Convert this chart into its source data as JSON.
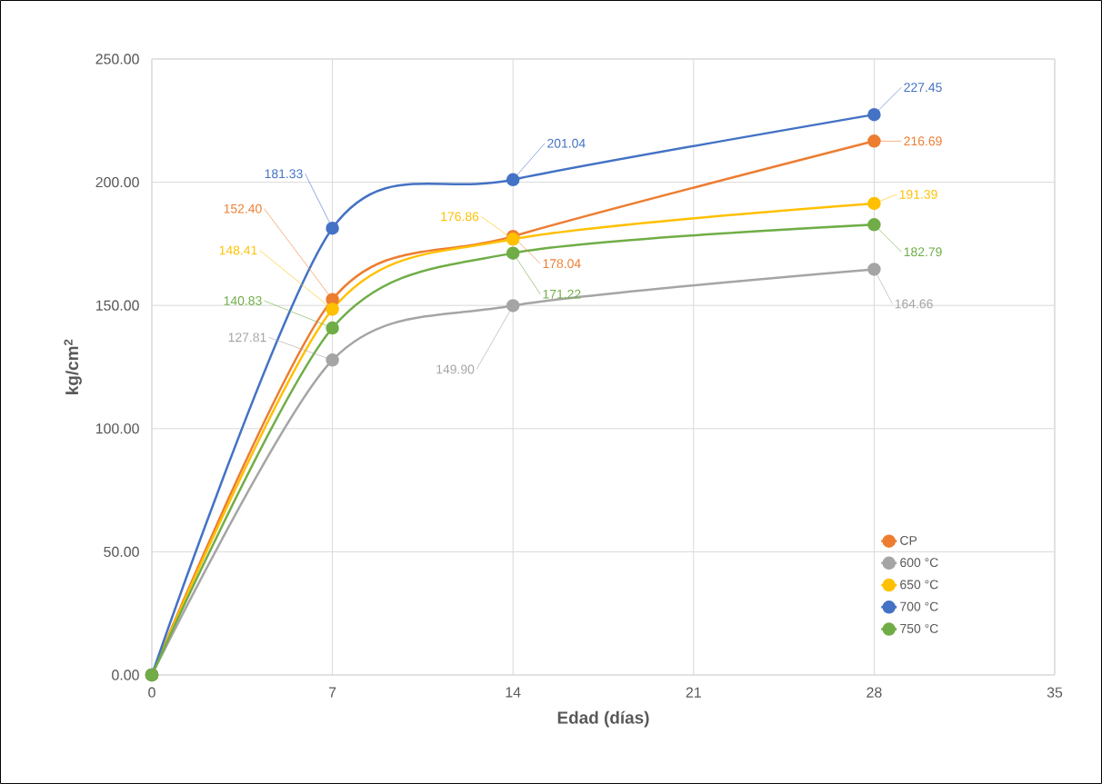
{
  "chart_data": {
    "type": "line",
    "xlabel": "Edad (días)",
    "ylabel": "kg/cm$^{2}$",
    "x": [
      0,
      7,
      14,
      28
    ],
    "xlim": [
      0,
      35
    ],
    "xticks": [
      0,
      7,
      14,
      21,
      28,
      35
    ],
    "ylim": [
      0,
      250
    ],
    "yticks": [
      {
        "value": 0,
        "label": "0.00"
      },
      {
        "value": 50,
        "label": "50.00"
      },
      {
        "value": 100,
        "label": "100.00"
      },
      {
        "value": 150,
        "label": "150.00"
      },
      {
        "value": 200,
        "label": "200.00"
      },
      {
        "value": 250,
        "label": "250.00"
      }
    ],
    "grid": true,
    "legend": "bottom right",
    "marker": "circle",
    "series": [
      {
        "name": "CP",
        "color": "#ed7d31",
        "values": [
          0,
          152.4,
          178.04,
          216.69
        ],
        "value_labels": [
          null,
          "152.40",
          "178.04",
          "216.69"
        ]
      },
      {
        "name": "600 °C",
        "color": "#a5a5a5",
        "values": [
          0,
          127.81,
          149.9,
          164.66
        ],
        "value_labels": [
          null,
          "127.81",
          "149.90",
          "164.66"
        ]
      },
      {
        "name": "650 °C",
        "color": "#ffc000",
        "values": [
          0,
          148.41,
          176.86,
          191.39
        ],
        "value_labels": [
          null,
          "148.41",
          "176.86",
          "191.39"
        ]
      },
      {
        "name": "700 °C",
        "color": "#4472c4",
        "values": [
          0,
          181.33,
          201.04,
          227.45
        ],
        "value_labels": [
          null,
          "181.33",
          "201.04",
          "227.45"
        ]
      },
      {
        "name": "750 °C",
        "color": "#70ad47",
        "values": [
          0,
          140.83,
          171.22,
          182.79
        ],
        "value_labels": [
          null,
          "140.83",
          "171.22",
          "182.79"
        ]
      }
    ]
  }
}
